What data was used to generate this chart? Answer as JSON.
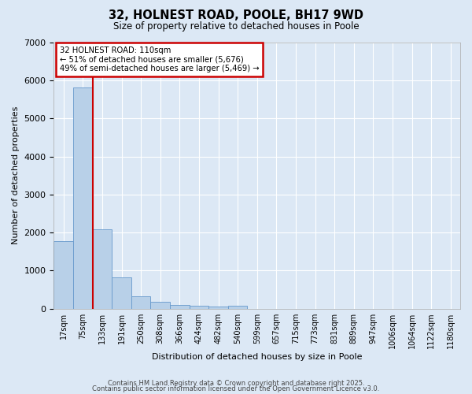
{
  "title": "32, HOLNEST ROAD, POOLE, BH17 9WD",
  "subtitle": "Size of property relative to detached houses in Poole",
  "xlabel": "Distribution of detached houses by size in Poole",
  "ylabel": "Number of detached properties",
  "bar_values": [
    1780,
    5820,
    2080,
    820,
    330,
    175,
    100,
    80,
    55,
    75,
    0,
    0,
    0,
    0,
    0,
    0,
    0,
    0,
    0,
    0,
    0
  ],
  "categories": [
    "17sqm",
    "75sqm",
    "133sqm",
    "191sqm",
    "250sqm",
    "308sqm",
    "366sqm",
    "424sqm",
    "482sqm",
    "540sqm",
    "599sqm",
    "657sqm",
    "715sqm",
    "773sqm",
    "831sqm",
    "889sqm",
    "947sqm",
    "1006sqm",
    "1064sqm",
    "1122sqm",
    "1180sqm"
  ],
  "bar_color": "#b8d0e8",
  "bar_edge_color": "#6699cc",
  "background_color": "#dce8f5",
  "grid_color": "#ffffff",
  "red_line_x": 2.0,
  "annotation_text": "32 HOLNEST ROAD: 110sqm\n← 51% of detached houses are smaller (5,676)\n49% of semi-detached houses are larger (5,469) →",
  "annotation_box_facecolor": "#ffffff",
  "annotation_box_edgecolor": "#cc0000",
  "ylim": [
    0,
    7000
  ],
  "yticks": [
    0,
    1000,
    2000,
    3000,
    4000,
    5000,
    6000,
    7000
  ],
  "footer1": "Contains HM Land Registry data © Crown copyright and database right 2025.",
  "footer2": "Contains public sector information licensed under the Open Government Licence v3.0."
}
